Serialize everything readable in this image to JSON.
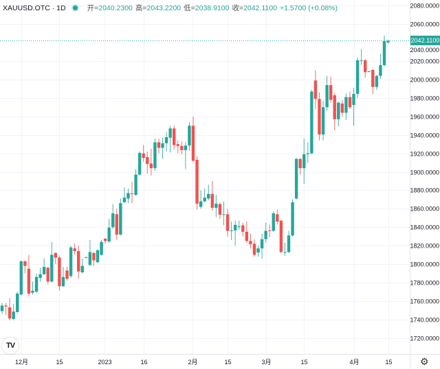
{
  "header": {
    "symbol": "XAUUSD.OTC · 1D",
    "open_label": "开=",
    "open": "2040.2300",
    "high_label": "高=",
    "high": "2043.2200",
    "low_label": "低=",
    "low": "2038.9100",
    "close_label": "收=",
    "close": "2042.1100",
    "change": "+1.5700 (+0.08%)"
  },
  "last_price_label": "2042.1100",
  "logo_text": "TV",
  "colors": {
    "up": "#26a69a",
    "down": "#ef5350",
    "grid": "#f0f3fa"
  },
  "chart_data": {
    "type": "candlestick",
    "title": "XAUUSD.OTC 1D",
    "ylim": [
      1710,
      2088
    ],
    "y_ticks": [
      "2080.0000",
      "2060.0000",
      "2040.0000",
      "2020.0000",
      "2000.0000",
      "1980.0000",
      "1960.0000",
      "1940.0000",
      "1920.0000",
      "1900.0000",
      "1880.0000",
      "1860.0000",
      "1840.0000",
      "1820.0000",
      "1800.0000",
      "1780.0000",
      "1760.0000",
      "1740.0000",
      "1720.0000"
    ],
    "x_ticks": [
      {
        "label": "12月",
        "index": 5
      },
      {
        "label": "15",
        "index": 15
      },
      {
        "label": "2023",
        "index": 26.8
      },
      {
        "label": "16",
        "index": 37
      },
      {
        "label": "2月",
        "index": 49.8
      },
      {
        "label": "15",
        "index": 59
      },
      {
        "label": "3月",
        "index": 69
      },
      {
        "label": "15",
        "index": 79
      },
      {
        "label": "4月",
        "index": 92
      },
      {
        "label": "15",
        "index": 101
      }
    ],
    "last_price": 2042.11,
    "candles_ohlc": [
      [
        1749,
        1758,
        1746,
        1755
      ],
      [
        1755,
        1758,
        1745,
        1754
      ],
      [
        1753,
        1763,
        1739,
        1741
      ],
      [
        1740.5,
        1757,
        1739,
        1748.5
      ],
      [
        1748,
        1770,
        1747,
        1768
      ],
      [
        1767,
        1804,
        1766,
        1803
      ],
      [
        1803,
        1804,
        1790,
        1798
      ],
      [
        1795,
        1810,
        1765,
        1768
      ],
      [
        1769,
        1781,
        1767,
        1771
      ],
      [
        1770,
        1790,
        1769,
        1786
      ],
      [
        1785,
        1796,
        1781,
        1789
      ],
      [
        1789,
        1806,
        1788,
        1797
      ],
      [
        1796,
        1797,
        1778,
        1781
      ],
      [
        1781,
        1824,
        1780,
        1810
      ],
      [
        1812,
        1813,
        1800,
        1807
      ],
      [
        1807,
        1809,
        1771,
        1776
      ],
      [
        1776,
        1797,
        1775,
        1786
      ],
      [
        1793,
        1797,
        1782,
        1784
      ],
      [
        1787,
        1820,
        1785,
        1818
      ],
      [
        1817,
        1822,
        1810,
        1814
      ],
      [
        1814,
        1820,
        1784,
        1792
      ],
      [
        1791,
        1806,
        1790,
        1798
      ],
      [
        1807,
        1808,
        1806,
        1807.5
      ],
      [
        1799,
        1826,
        1798,
        1813
      ],
      [
        1812,
        1813,
        1798,
        1804
      ],
      [
        1802,
        1816,
        1801,
        1815
      ],
      [
        1810,
        1826,
        1809,
        1824
      ],
      [
        1827.5,
        1828,
        1822,
        1825
      ],
      [
        1824.5,
        1849,
        1823,
        1839.5
      ],
      [
        1840,
        1865,
        1838,
        1855
      ],
      [
        1854,
        1860,
        1826,
        1832
      ],
      [
        1832,
        1871,
        1831,
        1866
      ],
      [
        1867,
        1883,
        1866,
        1872
      ],
      [
        1871,
        1882,
        1866,
        1877
      ],
      [
        1876.5,
        1889,
        1866,
        1876
      ],
      [
        1875,
        1903,
        1874,
        1897
      ],
      [
        1897,
        1922,
        1896,
        1920.5
      ],
      [
        1920,
        1929,
        1911,
        1915
      ],
      [
        1916,
        1922,
        1898,
        1908.5
      ],
      [
        1909,
        1925,
        1896,
        1904
      ],
      [
        1904,
        1936,
        1901,
        1932
      ],
      [
        1932,
        1936,
        1920,
        1926
      ],
      [
        1926,
        1937,
        1914,
        1931
      ],
      [
        1931,
        1943,
        1922,
        1937.5
      ],
      [
        1937,
        1950,
        1921,
        1947
      ],
      [
        1947,
        1950,
        1924,
        1929
      ],
      [
        1930,
        1934,
        1920,
        1928
      ],
      [
        1928,
        1933,
        1919,
        1923.5
      ],
      [
        1923.5,
        1932,
        1903,
        1928.5
      ],
      [
        1928.5,
        1954,
        1923,
        1950
      ],
      [
        1950,
        1960,
        1911,
        1912
      ],
      [
        1913,
        1917,
        1859,
        1865.5
      ],
      [
        1862,
        1880,
        1860,
        1868
      ],
      [
        1868,
        1882,
        1867,
        1872
      ],
      [
        1871,
        1886,
        1869,
        1876
      ],
      [
        1876,
        1890,
        1858,
        1861
      ],
      [
        1861,
        1875,
        1851,
        1865.5
      ],
      [
        1865,
        1867,
        1849,
        1853.5
      ],
      [
        1853.5,
        1868,
        1842,
        1854
      ],
      [
        1854,
        1860,
        1830,
        1836
      ],
      [
        1836,
        1846,
        1826,
        1836.5
      ],
      [
        1836.5,
        1847,
        1820,
        1842.5
      ],
      [
        1840.5,
        1847,
        1837,
        1841
      ],
      [
        1842,
        1845,
        1830,
        1835
      ],
      [
        1835,
        1846,
        1823,
        1825
      ],
      [
        1825,
        1833,
        1817,
        1821.5
      ],
      [
        1822,
        1827,
        1808,
        1810
      ],
      [
        1812.5,
        1820,
        1808,
        1817
      ],
      [
        1817,
        1833,
        1806,
        1827
      ],
      [
        1827,
        1845,
        1823,
        1836
      ],
      [
        1836.5,
        1843,
        1829,
        1836
      ],
      [
        1836,
        1857,
        1835,
        1855
      ],
      [
        1854,
        1859,
        1843,
        1846
      ],
      [
        1847,
        1848,
        1812,
        1813
      ],
      [
        1812.5,
        1823,
        1809,
        1813
      ],
      [
        1813,
        1836,
        1812,
        1831
      ],
      [
        1831,
        1870,
        1830,
        1867
      ],
      [
        1871,
        1915,
        1870,
        1914
      ],
      [
        1914,
        1915,
        1897,
        1904
      ],
      [
        1904,
        1936,
        1887,
        1919
      ],
      [
        1919,
        1932,
        1910,
        1920
      ],
      [
        1920,
        1989,
        1919,
        1987
      ],
      [
        1999,
        2010,
        1968,
        1979
      ],
      [
        1979,
        1986,
        1934,
        1940.5
      ],
      [
        1940.5,
        1977,
        1934,
        1970
      ],
      [
        1970,
        2004,
        1966,
        1994
      ],
      [
        1994,
        2003,
        1975,
        1978
      ],
      [
        1983,
        1985,
        1945,
        1957
      ],
      [
        1957,
        1976,
        1949,
        1975
      ],
      [
        1974,
        1978,
        1960,
        1964
      ],
      [
        1964,
        1985,
        1956,
        1981
      ],
      [
        1981,
        1987,
        1968,
        1970
      ],
      [
        1972.5,
        1991,
        1950,
        1984.5
      ],
      [
        1984.5,
        2024,
        1980,
        2021
      ],
      [
        2020.5,
        2033,
        2016,
        2021
      ],
      [
        2021,
        2022,
        2002,
        2008
      ],
      [
        2008.5,
        2009.5,
        2008,
        2009
      ],
      [
        2010.5,
        2011,
        1984.5,
        1992
      ],
      [
        1992,
        2005,
        1989,
        2004
      ],
      [
        2004,
        2028,
        2001,
        2015.6
      ],
      [
        2015.6,
        2047.6,
        2014,
        2041.6
      ],
      [
        2040.23,
        2043.22,
        2038.91,
        2042.11
      ]
    ]
  },
  "settings_icon": "gear-icon"
}
